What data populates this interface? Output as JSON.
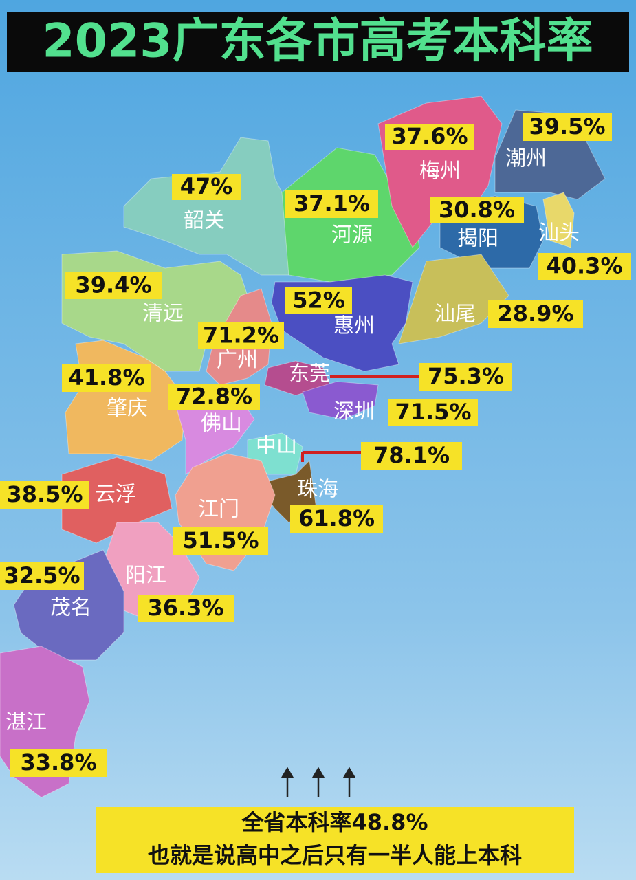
{
  "header": {
    "title": "2023广东各市高考本科率"
  },
  "cities": [
    {
      "name": "韶关",
      "rate": "47%"
    },
    {
      "name": "河源",
      "rate": "37.1%"
    },
    {
      "name": "梅州",
      "rate": "37.6%"
    },
    {
      "name": "潮州",
      "rate": "39.5%"
    },
    {
      "name": "揭阳",
      "rate": "30.8%"
    },
    {
      "name": "汕头",
      "rate": "40.3%"
    },
    {
      "name": "汕尾",
      "rate": "28.9%"
    },
    {
      "name": "惠州",
      "rate": "52%"
    },
    {
      "name": "清远",
      "rate": "39.4%"
    },
    {
      "name": "广州",
      "rate": "71.2%"
    },
    {
      "name": "东莞",
      "rate": "75.3%"
    },
    {
      "name": "深圳",
      "rate": "71.5%"
    },
    {
      "name": "肇庆",
      "rate": "41.8%"
    },
    {
      "name": "佛山",
      "rate": "72.8%"
    },
    {
      "name": "中山",
      "rate": "78.1%"
    },
    {
      "name": "珠海",
      "rate": "61.8%"
    },
    {
      "name": "云浮",
      "rate": "38.5%"
    },
    {
      "name": "江门",
      "rate": "51.5%"
    },
    {
      "name": "阳江",
      "rate": "36.3%"
    },
    {
      "name": "茂名",
      "rate": "32.5%"
    },
    {
      "name": "湛江",
      "rate": "33.8%"
    }
  ],
  "footer": {
    "lines": [
      "全省本科率48.8%",
      "也就是说高中之后只有一半人能上本科"
    ]
  }
}
